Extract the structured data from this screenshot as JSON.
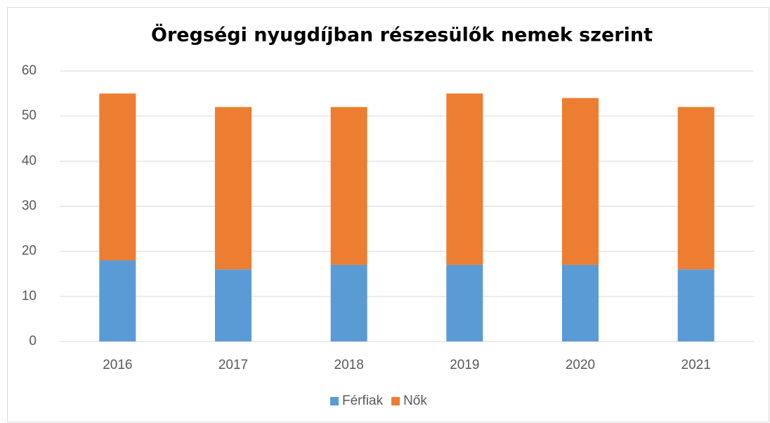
{
  "chart_data": {
    "type": "bar",
    "stacked": true,
    "title": "Öregségi nyugdíjban részesülők nemek szerint",
    "categories": [
      "2016",
      "2017",
      "2018",
      "2019",
      "2020",
      "2021"
    ],
    "series": [
      {
        "name": "Férfiak",
        "color": "#5b9bd5",
        "values": [
          18,
          16,
          17,
          17,
          17,
          16
        ]
      },
      {
        "name": "Nők",
        "color": "#ed7d31",
        "values": [
          37,
          36,
          35,
          38,
          37,
          36
        ]
      }
    ],
    "ylim": [
      0,
      60
    ],
    "yticks": [
      0,
      10,
      20,
      30,
      40,
      50,
      60
    ],
    "grid": true,
    "legend": "bottom"
  }
}
